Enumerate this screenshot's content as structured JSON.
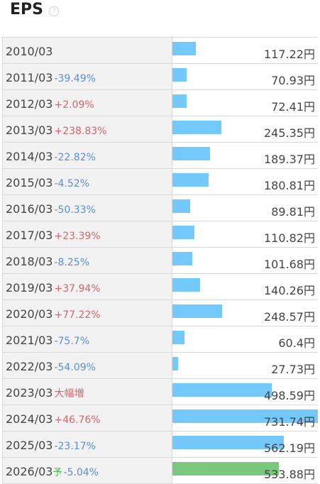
{
  "title": "EPS",
  "help_glyph": "?",
  "rows": [
    {
      "year": "2010/03",
      "change": "",
      "dir": "none",
      "value": "117.22円",
      "eps": 117.22
    },
    {
      "year": "2011/03",
      "change": "-39.49%",
      "dir": "down",
      "value": "70.93円",
      "eps": 70.93
    },
    {
      "year": "2012/03",
      "change": "+2.09%",
      "dir": "up",
      "value": "72.41円",
      "eps": 72.41
    },
    {
      "year": "2013/03",
      "change": "+238.83%",
      "dir": "up",
      "value": "245.35円",
      "eps": 245.35
    },
    {
      "year": "2014/03",
      "change": "-22.82%",
      "dir": "down",
      "value": "189.37円",
      "eps": 189.37
    },
    {
      "year": "2015/03",
      "change": "-4.52%",
      "dir": "down",
      "value": "180.81円",
      "eps": 180.81
    },
    {
      "year": "2016/03",
      "change": "-50.33%",
      "dir": "down",
      "value": "89.81円",
      "eps": 89.81
    },
    {
      "year": "2017/03",
      "change": "+23.39%",
      "dir": "up",
      "value": "110.82円",
      "eps": 110.82
    },
    {
      "year": "2018/03",
      "change": "-8.25%",
      "dir": "down",
      "value": "101.68円",
      "eps": 101.68
    },
    {
      "year": "2019/03",
      "change": "+37.94%",
      "dir": "up",
      "value": "140.26円",
      "eps": 140.26
    },
    {
      "year": "2020/03",
      "change": "+77.22%",
      "dir": "up",
      "value": "248.57円",
      "eps": 248.57
    },
    {
      "year": "2021/03",
      "change": "-75.7%",
      "dir": "down",
      "value": "60.4円",
      "eps": 60.4
    },
    {
      "year": "2022/03",
      "change": "-54.09%",
      "dir": "down",
      "value": "27.73円",
      "eps": 27.73
    },
    {
      "year": "2023/03",
      "change": "大幅増",
      "dir": "big",
      "value": "498.59円",
      "eps": 498.59
    },
    {
      "year": "2024/03",
      "change": "+46.76%",
      "dir": "up",
      "value": "731.74円",
      "eps": 731.74
    },
    {
      "year": "2025/03",
      "change": "-23.17%",
      "dir": "down",
      "value": "562.19円",
      "eps": 562.19
    },
    {
      "year": "2026/03",
      "forecast_mark": "予",
      "change": "-5.04%",
      "dir": "down",
      "value": "533.88円",
      "eps": 533.88,
      "forecast": true
    }
  ],
  "colors": {
    "bar": "#73c8fc",
    "bar_forecast": "#7ac77e",
    "up": "#d9646b",
    "down": "#5b8fd6"
  }
}
